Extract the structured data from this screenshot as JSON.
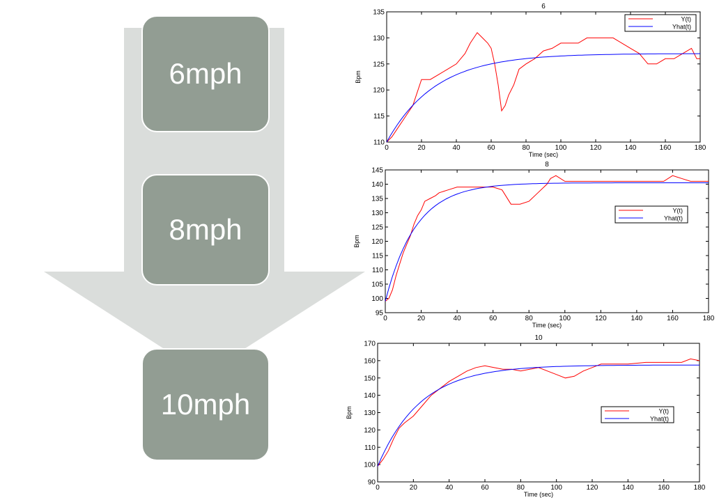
{
  "diagram": {
    "arrow_color": "#dadddb",
    "box_color": "#929d93",
    "boxes": [
      {
        "label": "6mph"
      },
      {
        "label": "8mph"
      },
      {
        "label": "10mph"
      }
    ]
  },
  "colors": {
    "y": "#ff0000",
    "yhat": "#0000ff"
  },
  "chart_data": [
    {
      "type": "line",
      "title": "6",
      "xlabel": "Time (sec)",
      "ylabel": "Bpm",
      "xlim": [
        0,
        180
      ],
      "ylim": [
        110,
        135
      ],
      "xticks": [
        0,
        20,
        40,
        60,
        80,
        100,
        120,
        140,
        160,
        180
      ],
      "yticks": [
        110,
        115,
        120,
        125,
        130,
        135
      ],
      "legend_position": "top-right",
      "series": [
        {
          "name": "Y(t)",
          "color": "#ff0000",
          "x": [
            0,
            3,
            6,
            9,
            12,
            15,
            18,
            20,
            25,
            30,
            35,
            40,
            45,
            48,
            50,
            52,
            55,
            58,
            60,
            62,
            64,
            66,
            68,
            70,
            73,
            76,
            80,
            85,
            90,
            95,
            100,
            110,
            115,
            120,
            125,
            130,
            135,
            140,
            145,
            150,
            155,
            160,
            165,
            170,
            175,
            178,
            180
          ],
          "y": [
            110,
            111,
            112.5,
            114,
            115.5,
            117,
            120,
            122,
            122,
            123,
            124,
            125,
            127,
            129,
            130,
            131,
            130,
            129,
            128,
            125,
            121,
            116,
            117,
            119,
            121,
            124,
            125,
            126,
            127.5,
            128,
            129,
            129,
            130,
            130,
            130,
            130,
            129,
            128,
            127,
            125,
            125,
            126,
            126,
            127,
            128,
            126,
            126
          ]
        },
        {
          "name": "Yhat(t)",
          "color": "#0000ff",
          "model": {
            "y0": 110,
            "yss": 127,
            "tau": 28
          }
        }
      ]
    },
    {
      "type": "line",
      "title": "8",
      "xlabel": "Time (sec)",
      "ylabel": "Bpm",
      "xlim": [
        0,
        180
      ],
      "ylim": [
        95,
        145
      ],
      "xticks": [
        0,
        20,
        40,
        60,
        80,
        100,
        120,
        140,
        160,
        180
      ],
      "yticks": [
        95,
        100,
        105,
        110,
        115,
        120,
        125,
        130,
        135,
        140,
        145
      ],
      "legend_position": "center-right",
      "series": [
        {
          "name": "Y(t)",
          "color": "#ff0000",
          "x": [
            0,
            2,
            4,
            6,
            8,
            10,
            12,
            14,
            16,
            18,
            20,
            22,
            25,
            28,
            30,
            35,
            40,
            45,
            50,
            55,
            60,
            65,
            70,
            75,
            80,
            85,
            90,
            92,
            95,
            100,
            110,
            120,
            130,
            140,
            150,
            155,
            160,
            165,
            170,
            180
          ],
          "y": [
            99,
            100,
            103,
            108,
            112,
            116,
            119,
            122,
            126,
            129,
            131,
            134,
            135,
            136,
            137,
            138,
            139,
            139,
            139,
            139,
            139,
            138,
            133,
            133,
            134,
            137,
            140,
            142,
            143,
            141,
            141,
            141,
            141,
            141,
            141,
            141,
            143,
            142,
            141,
            141
          ]
        },
        {
          "name": "Yhat(t)",
          "color": "#0000ff",
          "model": {
            "y0": 99,
            "yss": 140.5,
            "tau": 17
          }
        }
      ]
    },
    {
      "type": "line",
      "title": "10",
      "xlabel": "Time (sec)",
      "ylabel": "Bpm",
      "xlim": [
        0,
        180
      ],
      "ylim": [
        90,
        170
      ],
      "xticks": [
        0,
        20,
        40,
        60,
        80,
        100,
        120,
        140,
        160,
        180
      ],
      "yticks": [
        90,
        100,
        110,
        120,
        130,
        140,
        150,
        160,
        170
      ],
      "legend_position": "center-right",
      "series": [
        {
          "name": "Y(t)",
          "color": "#ff0000",
          "x": [
            0,
            3,
            6,
            9,
            12,
            15,
            20,
            25,
            30,
            35,
            40,
            45,
            50,
            55,
            60,
            65,
            70,
            75,
            80,
            85,
            90,
            95,
            100,
            105,
            110,
            115,
            120,
            125,
            130,
            140,
            150,
            160,
            170,
            175,
            180
          ],
          "y": [
            99,
            103,
            108,
            115,
            121,
            124,
            128,
            134,
            140,
            144,
            148,
            151,
            154,
            156,
            157,
            156,
            155,
            155,
            154,
            155,
            156,
            154,
            152,
            150,
            151,
            154,
            156,
            158,
            158,
            158,
            159,
            159,
            159,
            161,
            160
          ]
        },
        {
          "name": "Yhat(t)",
          "color": "#0000ff",
          "model": {
            "y0": 99,
            "yss": 157.5,
            "tau": 24
          }
        }
      ]
    }
  ]
}
